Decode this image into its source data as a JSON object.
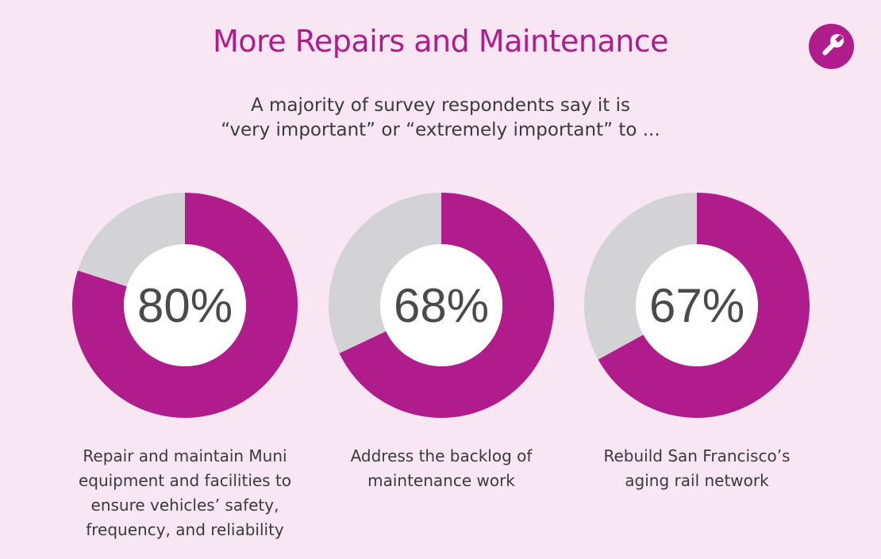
{
  "header": {
    "title": "More Repairs and Maintenance",
    "subtitle_line1": "A majority of survey respondents say it is",
    "subtitle_line2": "“very important” or “extremely important” to ..."
  },
  "badge": {
    "icon": "wrench-icon"
  },
  "colors": {
    "accent": "#b01c8b",
    "remainder": "#d3d3d5",
    "center": "#ffffff",
    "background": "#f8e6f3"
  },
  "chart_data": {
    "type": "pie",
    "variant": "donut",
    "title": "More Repairs and Maintenance",
    "subtitle": "A majority of survey respondents say it is “very important” or “extremely important” to ...",
    "units": "%",
    "items": [
      {
        "value": 80,
        "value_label": "80%",
        "label_lines": [
          "Repair and maintain Muni",
          "equipment and facilities to",
          "ensure vehicles’ safety,",
          "frequency, and reliability"
        ]
      },
      {
        "value": 68,
        "value_label": "68%",
        "label_lines": [
          "Address the backlog of",
          "maintenance work"
        ]
      },
      {
        "value": 67,
        "value_label": "67%",
        "label_lines": [
          "Rebuild San Francisco’s",
          "aging rail network"
        ]
      }
    ]
  }
}
